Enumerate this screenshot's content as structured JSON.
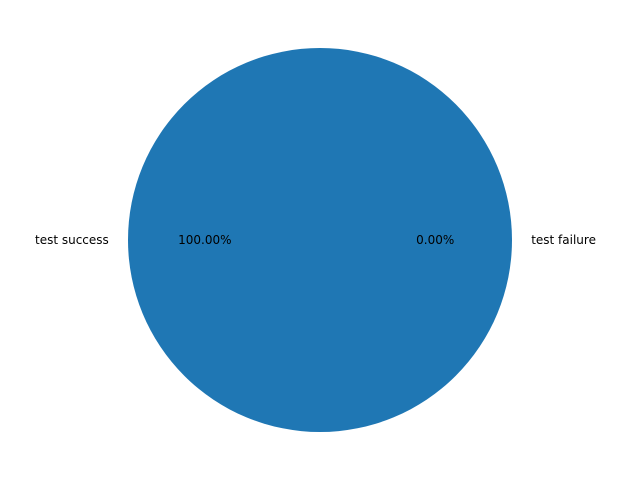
{
  "chart_data": {
    "type": "pie",
    "categories": [
      "test success",
      "test failure"
    ],
    "values": [
      100.0,
      0.0
    ],
    "percent_labels": [
      "100.00%",
      "0.00%"
    ],
    "colors": [
      "#1f77b4",
      "#ff7f0e"
    ],
    "title": "",
    "legend": "none"
  }
}
